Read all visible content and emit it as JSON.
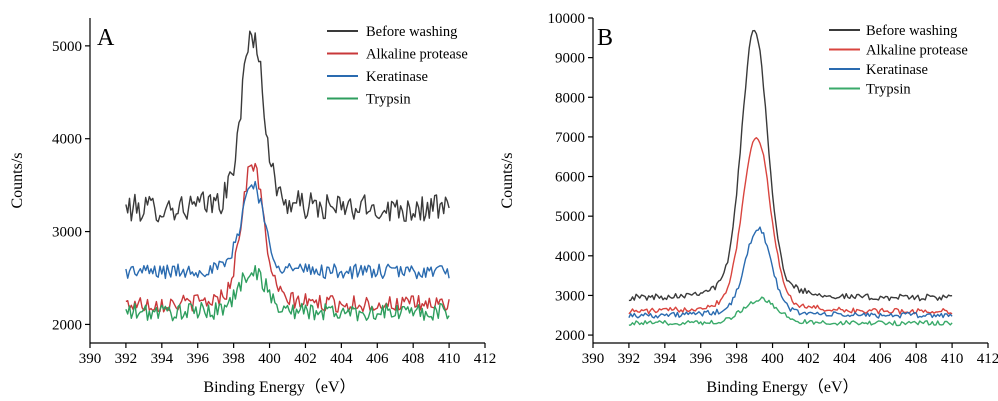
{
  "chart_data": [
    {
      "type": "line",
      "panel_label": "A",
      "xlabel": "Binding Energy（eV）",
      "ylabel": "Counts/s",
      "xlim": [
        390,
        412
      ],
      "ylim": [
        1800,
        5300
      ],
      "xticks": [
        390,
        392,
        394,
        396,
        398,
        400,
        402,
        404,
        406,
        408,
        410,
        412
      ],
      "yticks": [
        2000,
        3000,
        4000,
        5000
      ],
      "grid": false,
      "legend_position": "top-right",
      "x_range": [
        392,
        410
      ],
      "series": [
        {
          "name": "Before washing",
          "color": "#3a3a3a",
          "baseline": 3250,
          "peak": 5030,
          "center": 399.05,
          "width": 0.6,
          "noise": 150
        },
        {
          "name": "Alkaline protease",
          "color": "#c8383a",
          "baseline": 2220,
          "peak": 3650,
          "center": 399.05,
          "width": 0.6,
          "noise": 90
        },
        {
          "name": "Keratinase",
          "color": "#2a6bb0",
          "baseline": 2570,
          "peak": 3470,
          "center": 399.05,
          "width": 0.6,
          "noise": 80
        },
        {
          "name": "Trypsin",
          "color": "#2e9e5e",
          "baseline": 2130,
          "peak": 2560,
          "center": 399.05,
          "width": 0.7,
          "noise": 95
        }
      ]
    },
    {
      "type": "line",
      "panel_label": "B",
      "xlabel": "Binding Energy（eV）",
      "ylabel": "Counts/s",
      "xlim": [
        390,
        412
      ],
      "ylim": [
        1800,
        10000
      ],
      "xticks": [
        390,
        392,
        394,
        396,
        398,
        400,
        402,
        404,
        406,
        408,
        410,
        412
      ],
      "yticks": [
        2000,
        3000,
        4000,
        5000,
        6000,
        7000,
        8000,
        9000,
        10000
      ],
      "grid": false,
      "legend_position": "top-right",
      "x_range": [
        392,
        410
      ],
      "series": [
        {
          "name": "Before washing",
          "color": "#3a3a3a",
          "baseline": 2950,
          "peak": 9350,
          "center": 399.0,
          "width": 0.7,
          "noise": 80
        },
        {
          "name": "Alkaline protease",
          "color": "#d9453f",
          "baseline": 2600,
          "peak": 6780,
          "center": 399.1,
          "width": 0.75,
          "noise": 70
        },
        {
          "name": "Keratinase",
          "color": "#2a6bb0",
          "baseline": 2500,
          "peak": 4580,
          "center": 399.2,
          "width": 0.7,
          "noise": 70
        },
        {
          "name": "Trypsin",
          "color": "#3aaa6a",
          "baseline": 2300,
          "peak": 2870,
          "center": 399.3,
          "width": 0.9,
          "noise": 60
        }
      ]
    }
  ]
}
